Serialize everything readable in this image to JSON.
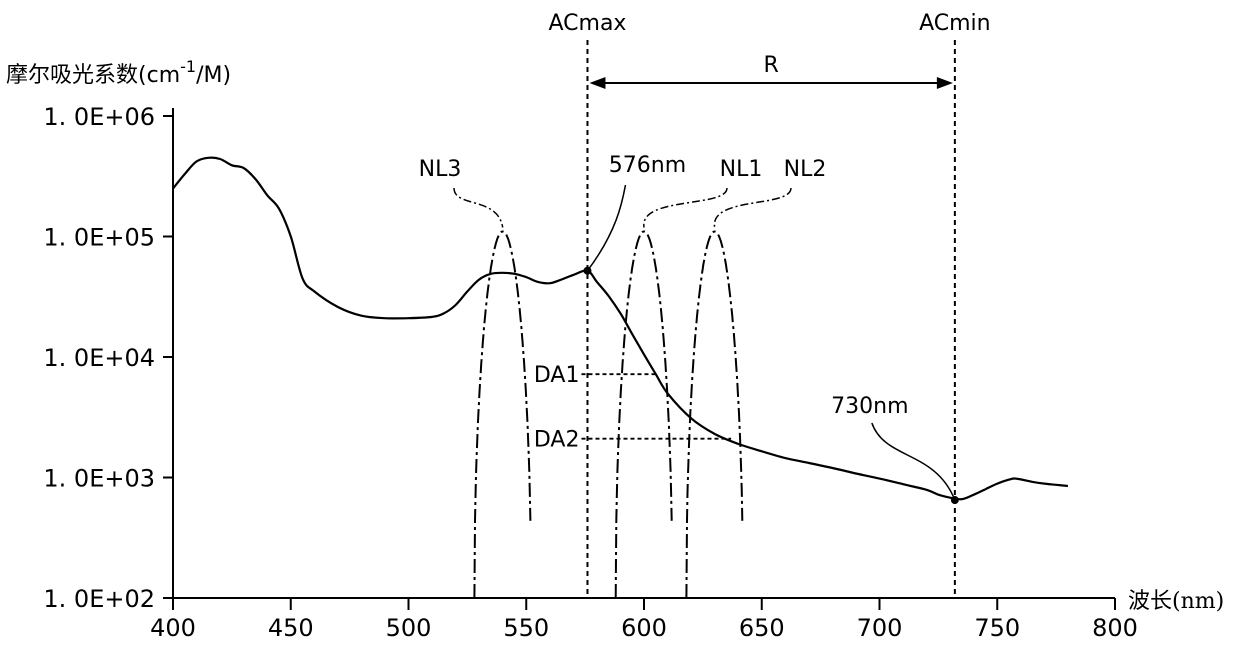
{
  "chart_data": {
    "type": "line",
    "ylabel_prefix": "摩尔吸光系数",
    "ylabel_unit": "(cm",
    "ylabel_exp": "-1",
    "ylabel_tail": "/M)",
    "xlabel": "波长(nm)",
    "y_scale": "log",
    "xlim": [
      400,
      800
    ],
    "ylim": [
      100,
      1000000
    ],
    "xticks": [
      400,
      450,
      500,
      550,
      600,
      650,
      700,
      750,
      800
    ],
    "xtick_labels": [
      "400",
      "450",
      "500",
      "550",
      "600",
      "650",
      "700",
      "750",
      "800"
    ],
    "yticks": [
      100,
      1000,
      10000,
      100000,
      1000000
    ],
    "ytick_labels": [
      "1. 0E+02",
      "1. 0E+03",
      "1. 0E+04",
      "1. 0E+05",
      "1. 0E+06"
    ],
    "absorption": {
      "x": [
        400,
        405,
        410,
        415,
        420,
        425,
        430,
        435,
        440,
        445,
        450,
        455,
        460,
        470,
        480,
        490,
        500,
        510,
        515,
        520,
        525,
        530,
        535,
        540,
        545,
        550,
        555,
        560,
        565,
        570,
        576,
        580,
        585,
        590,
        595,
        600,
        605,
        610,
        620,
        630,
        640,
        650,
        660,
        670,
        680,
        690,
        700,
        710,
        720,
        725,
        730,
        735,
        740,
        745,
        750,
        755,
        758,
        765,
        770,
        775,
        780
      ],
      "y": [
        250000,
        330000,
        420000,
        450000,
        440000,
        390000,
        370000,
        300000,
        220000,
        170000,
        100000,
        45000,
        35000,
        26000,
        22000,
        21000,
        21000,
        21500,
        23000,
        27000,
        35000,
        44000,
        49000,
        50000,
        49000,
        46000,
        42000,
        41000,
        44000,
        48000,
        52000,
        42000,
        32000,
        23000,
        15500,
        10500,
        7200,
        5000,
        3100,
        2300,
        1900,
        1650,
        1450,
        1320,
        1200,
        1080,
        980,
        880,
        790,
        720,
        680,
        660,
        720,
        800,
        890,
        960,
        980,
        920,
        890,
        870,
        850
      ]
    },
    "bands": [
      {
        "name": "NL3",
        "center": 540,
        "halfwidth": 12
      },
      {
        "name": "NL1",
        "center": 600,
        "halfwidth": 12
      },
      {
        "name": "NL2",
        "center": 630,
        "halfwidth": 12
      }
    ],
    "band_peak": 110000,
    "markers": [
      {
        "name": "ACmax",
        "x": 576
      },
      {
        "name": "ACmin",
        "x": 732
      }
    ],
    "range_label": "R",
    "points": [
      {
        "label": "576nm",
        "x": 576,
        "y": 52000
      },
      {
        "label": "730nm",
        "x": 732,
        "y": 650
      }
    ],
    "levels": [
      {
        "name": "DA1",
        "y": 7200,
        "x_end": 605
      },
      {
        "name": "DA2",
        "y": 2100,
        "x_end": 637
      }
    ]
  }
}
